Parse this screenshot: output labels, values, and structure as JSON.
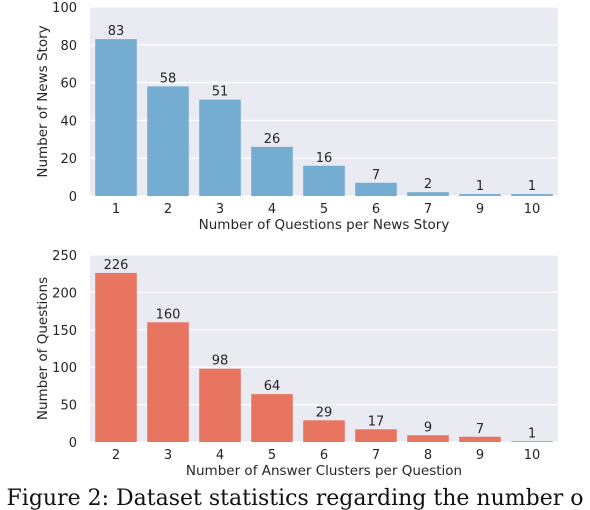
{
  "chart_data": [
    {
      "type": "bar",
      "categories": [
        "1",
        "2",
        "3",
        "4",
        "5",
        "6",
        "7",
        "9",
        "10"
      ],
      "values": [
        83,
        58,
        51,
        26,
        16,
        7,
        2,
        1,
        1
      ],
      "data_labels": [
        "83",
        "58",
        "51",
        "26",
        "16",
        "7",
        "2",
        "1",
        "1"
      ],
      "xlabel": "Number of Questions per News Story",
      "ylabel": "Number of News Story",
      "ylim": [
        0,
        100
      ],
      "yticks": [
        "0",
        "20",
        "40",
        "60",
        "80",
        "100"
      ],
      "color": "#74add1",
      "grid": true
    },
    {
      "type": "bar",
      "categories": [
        "2",
        "3",
        "4",
        "5",
        "6",
        "7",
        "8",
        "9",
        "10"
      ],
      "values": [
        226,
        160,
        98,
        64,
        29,
        17,
        9,
        7,
        1
      ],
      "data_labels": [
        "226",
        "160",
        "98",
        "64",
        "29",
        "17",
        "9",
        "7",
        "1"
      ],
      "xlabel": "Number of Answer Clusters per Question",
      "ylabel": "Number of Questions",
      "ylim": [
        0,
        250
      ],
      "yticks": [
        "0",
        "50",
        "100",
        "150",
        "200",
        "250"
      ],
      "color": "#e8755f",
      "grid": true
    }
  ],
  "caption": "Figure 2: Dataset statistics regarding the number o"
}
